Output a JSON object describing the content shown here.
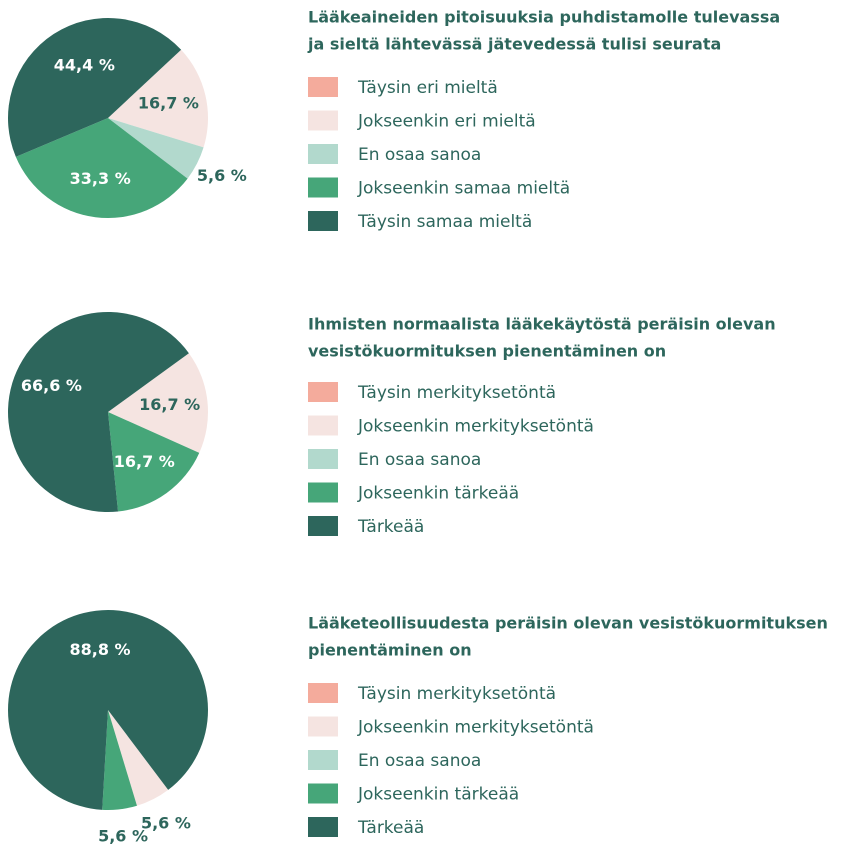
{
  "chart_data": [
    {
      "type": "pie",
      "title": [
        "Lääkeaineiden pitoisuuksia puhdistamolle tulevassa",
        "ja sieltä lähtevässä jätevedessä tulisi seurata"
      ],
      "categories": [
        "Täysin eri mieltä",
        "Jokseenkin eri mieltä",
        "En osaa sanoa",
        "Jokseenkin samaa mieltä",
        "Täysin samaa mieltä"
      ],
      "values": [
        0,
        16.7,
        5.6,
        33.3,
        44.4
      ],
      "value_labels": [
        null,
        "16,7 %",
        "5,6 %",
        "33,3 %",
        "44,4 %"
      ],
      "colors": [
        "#f4ab9c",
        "#f5e4e1",
        "#b2d9cd",
        "#46a679",
        "#2d665c"
      ]
    },
    {
      "type": "pie",
      "title": [
        "Ihmisten normaalista lääkekäytöstä peräisin olevan",
        "vesistökuormituksen pienentäminen on"
      ],
      "categories": [
        "Täysin merkityksetöntä",
        "Jokseenkin merkityksetöntä",
        "En osaa sanoa",
        "Jokseenkin tärkeää",
        "Tärkeää"
      ],
      "values": [
        0,
        16.7,
        0,
        16.7,
        66.6
      ],
      "value_labels": [
        null,
        "16,7 %",
        null,
        "16,7 %",
        "66,6 %"
      ],
      "colors": [
        "#f4ab9c",
        "#f5e4e1",
        "#b2d9cd",
        "#46a679",
        "#2d665c"
      ]
    },
    {
      "type": "pie",
      "title": [
        "Lääketeollisuudesta peräisin olevan vesistökuormituksen",
        "pienentäminen on"
      ],
      "categories": [
        "Täysin merkityksetöntä",
        "Jokseenkin merkityksetöntä",
        "En osaa sanoa",
        "Jokseenkin tärkeää",
        "Tärkeää"
      ],
      "values": [
        0,
        5.6,
        0,
        5.6,
        88.8
      ],
      "value_labels": [
        null,
        "5,6 %",
        null,
        "5,6 %",
        "88,8 %"
      ],
      "colors": [
        "#f4ab9c",
        "#f5e4e1",
        "#b2d9cd",
        "#46a679",
        "#2d665c"
      ]
    }
  ]
}
